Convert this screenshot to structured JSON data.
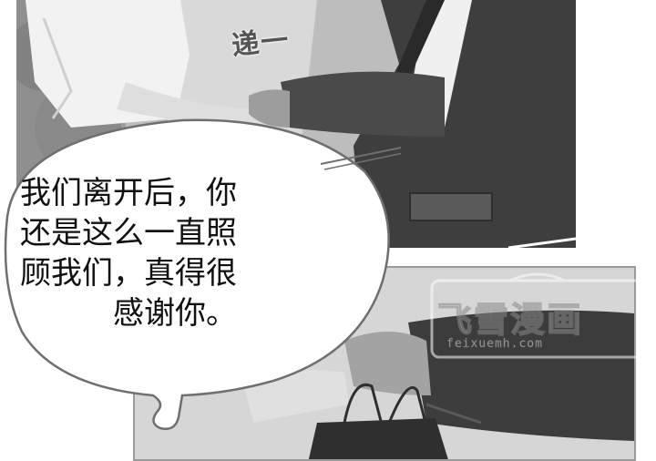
{
  "sound_effect": "递一",
  "speech_bubble": {
    "lines": [
      "我们离开后，你",
      "还是这么一直照",
      "顾我们，真得很",
      "感谢你。"
    ]
  },
  "watermark": {
    "title": "飞雪漫画",
    "subtitle": "feixuemh.com"
  }
}
